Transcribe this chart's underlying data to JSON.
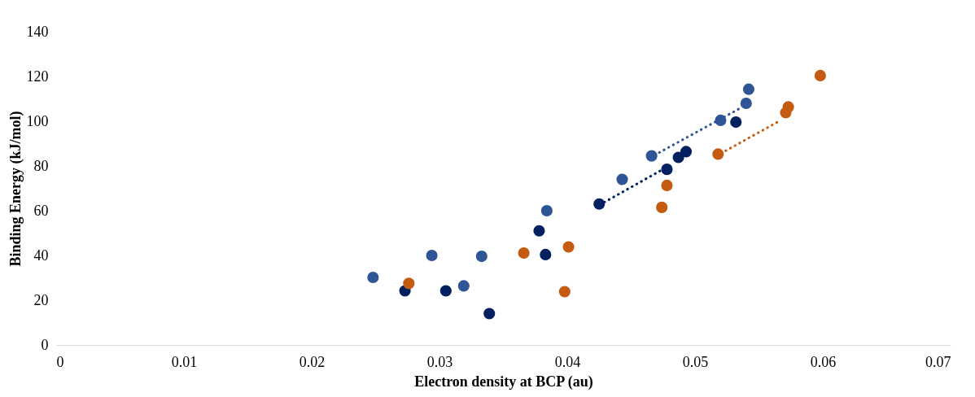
{
  "chart_data": {
    "type": "scatter",
    "xlabel": "Electron density at BCP (au)",
    "ylabel": "Binding Energy (kJ/mol)",
    "xlim": [
      0,
      0.07
    ],
    "xticks": [
      0,
      0.01,
      0.02,
      0.03,
      0.04,
      0.05,
      0.06,
      0.07
    ],
    "ylim": [
      0,
      140
    ],
    "yticks": [
      0,
      20,
      40,
      60,
      80,
      100,
      120,
      140
    ],
    "grid": false,
    "marker": "circle",
    "series": [
      {
        "color": "#2f5597",
        "x": [
          0.0248,
          0.0294,
          0.0319,
          0.0333,
          0.0384,
          0.0443,
          0.0466,
          0.052,
          0.054,
          0.0542
        ],
        "values": [
          30.2,
          40,
          26.4,
          39.6,
          60,
          74,
          84.5,
          100.4,
          108,
          114.3
        ]
      },
      {
        "color": "#002060",
        "x": [
          0.0273,
          0.0305,
          0.0339,
          0.0378,
          0.0383,
          0.0425,
          0.0478,
          0.0487,
          0.0493,
          0.0532
        ],
        "values": [
          24.2,
          24.2,
          14,
          51,
          40.4,
          63,
          78.5,
          83.8,
          86.4,
          99.6
        ]
      },
      {
        "color": "#c55a11",
        "x": [
          0.0276,
          0.0366,
          0.0398,
          0.0401,
          0.0474,
          0.0478,
          0.0518,
          0.0571,
          0.0573,
          0.0598
        ],
        "values": [
          27.5,
          41.1,
          23.8,
          43.8,
          61.5,
          71.3,
          85.3,
          103.8,
          106.4,
          120.4
        ]
      },
      {
        "type": "line",
        "marker": "none",
        "line_style": "dotted",
        "color": "#2f5597",
        "x": [
          0.0472,
          0.0535
        ],
        "values": [
          86,
          105.7
        ]
      },
      {
        "type": "line",
        "marker": "none",
        "line_style": "dotted",
        "color": "#002060",
        "x": [
          0.0429,
          0.0483
        ],
        "values": [
          63.8,
          81.1
        ]
      },
      {
        "type": "line",
        "marker": "none",
        "line_style": "dotted",
        "color": "#c55a11",
        "x": [
          0.0524,
          0.0567
        ],
        "values": [
          86.8,
          100.4
        ]
      }
    ]
  }
}
